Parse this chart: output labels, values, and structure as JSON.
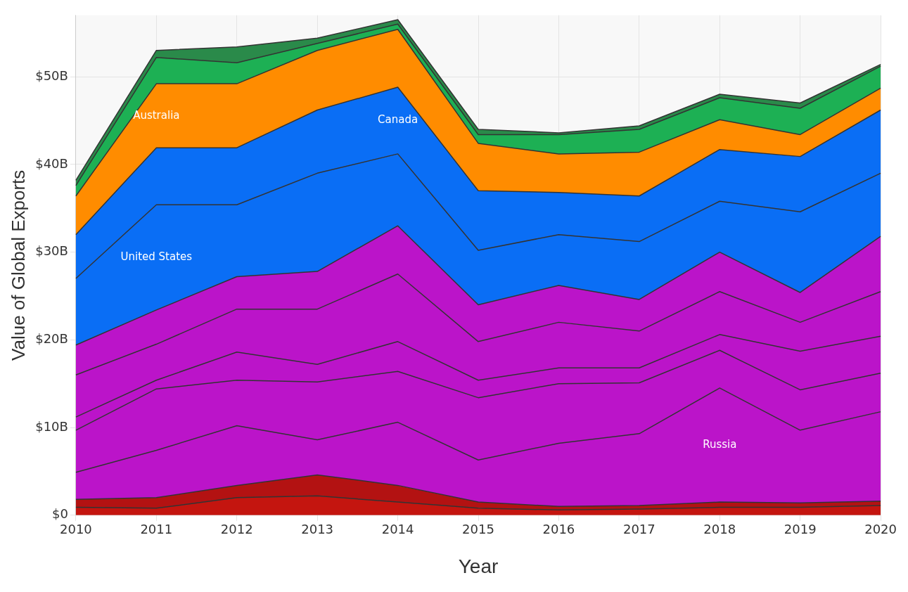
{
  "chart_data": {
    "type": "area",
    "stacked": true,
    "xlabel": "Year",
    "ylabel": "Value of Global Exports",
    "categories": [
      "2010",
      "2011",
      "2012",
      "2013",
      "2014",
      "2015",
      "2016",
      "2017",
      "2018",
      "2019",
      "2020"
    ],
    "ylim": [
      0,
      57
    ],
    "yticks": [
      {
        "value": 0,
        "label": "$0"
      },
      {
        "value": 10,
        "label": "$10B"
      },
      {
        "value": 20,
        "label": "$20B"
      },
      {
        "value": 30,
        "label": "$30B"
      },
      {
        "value": 40,
        "label": "$40B"
      },
      {
        "value": 50,
        "label": "$50B"
      }
    ],
    "grid": true,
    "legend": false,
    "series": [
      {
        "color": "#c4150f",
        "values": [
          0.9,
          0.8,
          2.0,
          2.2,
          1.5,
          0.8,
          0.6,
          0.7,
          0.9,
          0.9,
          1.1
        ]
      },
      {
        "color": "#b31212",
        "values": [
          0.9,
          1.2,
          1.4,
          2.4,
          1.9,
          0.7,
          0.4,
          0.4,
          0.6,
          0.5,
          0.5
        ]
      },
      {
        "name": "Russia",
        "color": "#bb14c9",
        "values": [
          3.1,
          5.4,
          6.8,
          4.0,
          7.2,
          4.8,
          7.2,
          8.2,
          13.0,
          8.3,
          10.2
        ]
      },
      {
        "color": "#bb14c9",
        "values": [
          4.8,
          7.0,
          5.2,
          6.6,
          5.8,
          7.1,
          6.8,
          5.8,
          4.3,
          4.6,
          4.4
        ]
      },
      {
        "color": "#bb14c9",
        "values": [
          1.5,
          1.0,
          3.2,
          2.0,
          3.4,
          2.0,
          1.8,
          1.7,
          1.8,
          4.4,
          4.2
        ]
      },
      {
        "color": "#bb14c9",
        "values": [
          4.8,
          4.1,
          4.9,
          6.3,
          7.7,
          4.4,
          5.2,
          4.2,
          4.9,
          3.3,
          5.1
        ]
      },
      {
        "color": "#bb14c9",
        "values": [
          3.4,
          3.9,
          3.7,
          4.3,
          5.5,
          4.2,
          4.2,
          3.6,
          4.5,
          3.4,
          6.3
        ]
      },
      {
        "name": "United States",
        "color": "#0a6ef5",
        "values": [
          7.6,
          12.0,
          8.2,
          11.2,
          8.2,
          6.2,
          5.8,
          6.6,
          5.8,
          9.2,
          7.2
        ]
      },
      {
        "name": "Canada",
        "color": "#0a6ef5",
        "values": [
          5.0,
          6.5,
          6.5,
          7.2,
          7.6,
          6.8,
          4.8,
          5.2,
          5.9,
          6.3,
          7.2
        ]
      },
      {
        "name": "Australia",
        "color": "#ff8c00",
        "values": [
          4.4,
          7.3,
          7.3,
          6.8,
          6.6,
          5.4,
          4.4,
          5.0,
          3.4,
          2.5,
          2.5
        ]
      },
      {
        "color": "#1db054",
        "values": [
          1.2,
          3.0,
          2.4,
          0.8,
          0.6,
          1.0,
          2.2,
          2.6,
          2.5,
          3.0,
          2.5
        ]
      },
      {
        "color": "#2a8a4a",
        "values": [
          0.6,
          0.8,
          1.8,
          0.6,
          0.5,
          0.6,
          0.2,
          0.4,
          0.4,
          0.6,
          0.2
        ]
      }
    ]
  }
}
